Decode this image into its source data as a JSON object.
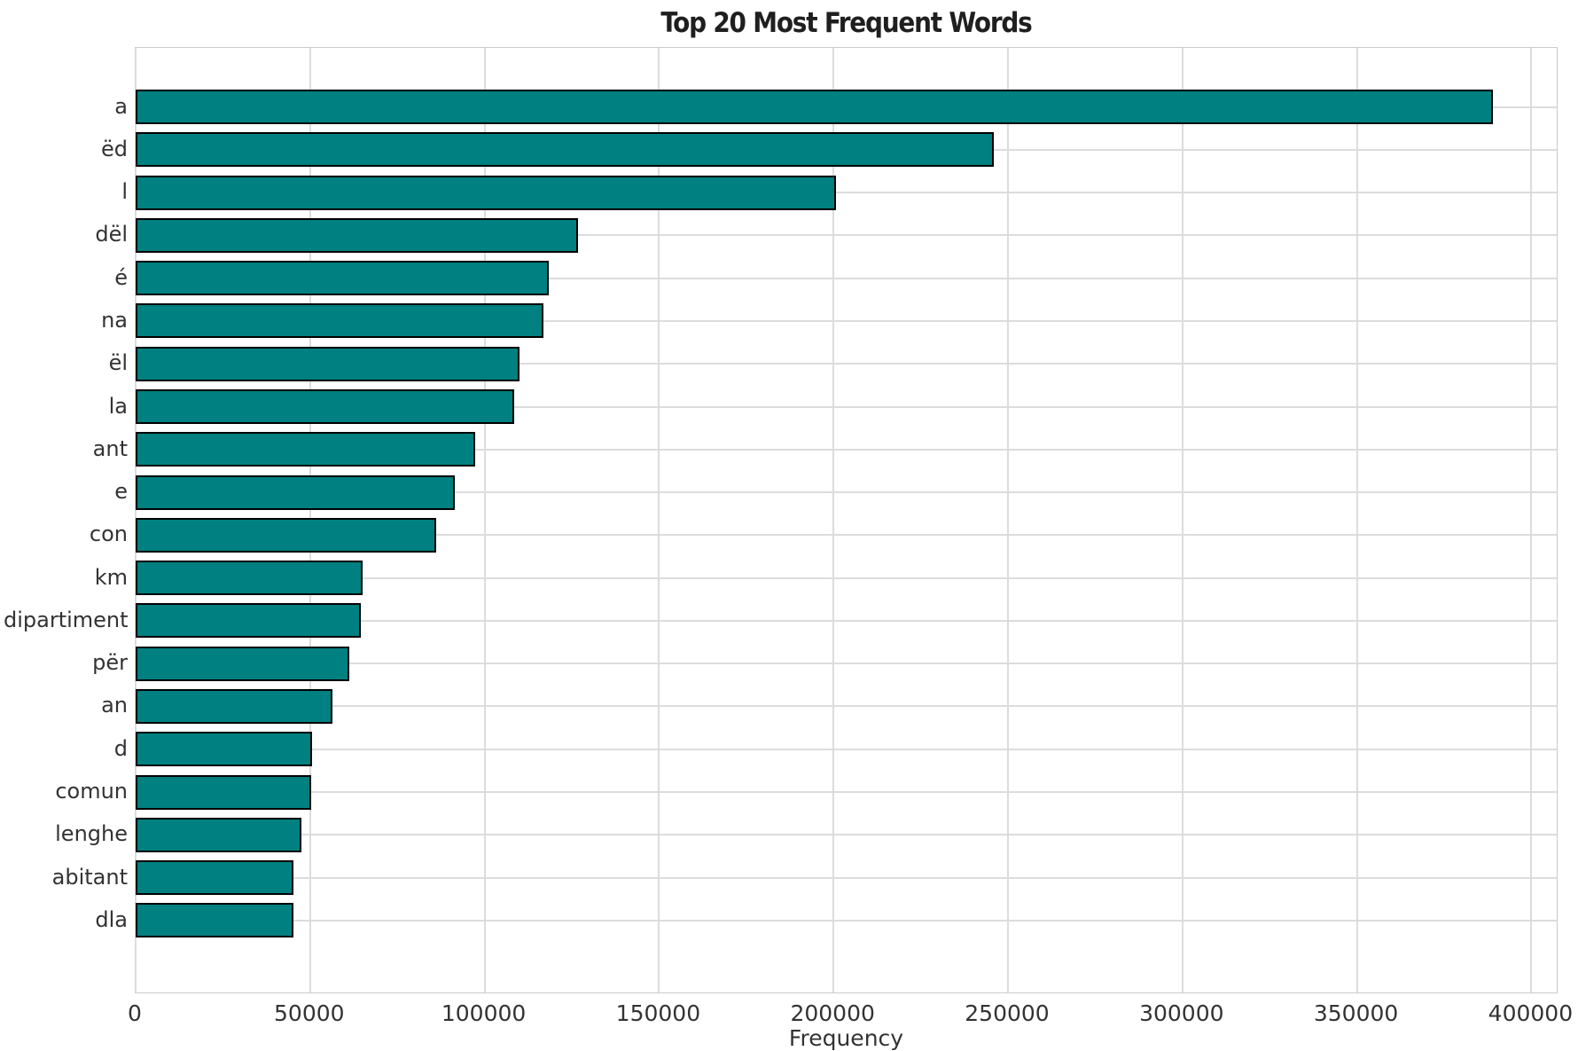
{
  "title": "Top 20 Most Frequent Words",
  "x_axis": {
    "label": "Frequency",
    "tick_labels": [
      "0",
      "50000",
      "100000",
      "150000",
      "200000",
      "250000",
      "300000",
      "350000",
      "400000"
    ],
    "tick_values": [
      0,
      50000,
      100000,
      150000,
      200000,
      250000,
      300000,
      350000,
      400000
    ]
  },
  "colors": {
    "bar_fill": "#008080",
    "bar_edge": "#000000",
    "grid": "#dcdcdc",
    "axis_border": "#cccccc",
    "title_text": "#1f1f1f",
    "tick_text": "#333333",
    "background": "#ffffff"
  },
  "chart_data": {
    "type": "bar",
    "orientation": "horizontal",
    "title": "Top 20 Most Frequent Words",
    "xlabel": "Frequency",
    "ylabel": "",
    "categories": [
      "a",
      "ëd",
      "l",
      "dël",
      "é",
      "na",
      "ël",
      "la",
      "ant",
      "e",
      "con",
      "km",
      "dipartiment",
      "për",
      "an",
      "d",
      "comun",
      "lenghe",
      "abitant",
      "dla"
    ],
    "values": [
      389000,
      246000,
      200700,
      126800,
      118400,
      116800,
      110100,
      108500,
      97300,
      91400,
      86100,
      65000,
      64500,
      61200,
      56500,
      50600,
      50300,
      47400,
      45300,
      45100
    ],
    "xlim": [
      0,
      407780
    ],
    "grid": true,
    "legend": false
  }
}
